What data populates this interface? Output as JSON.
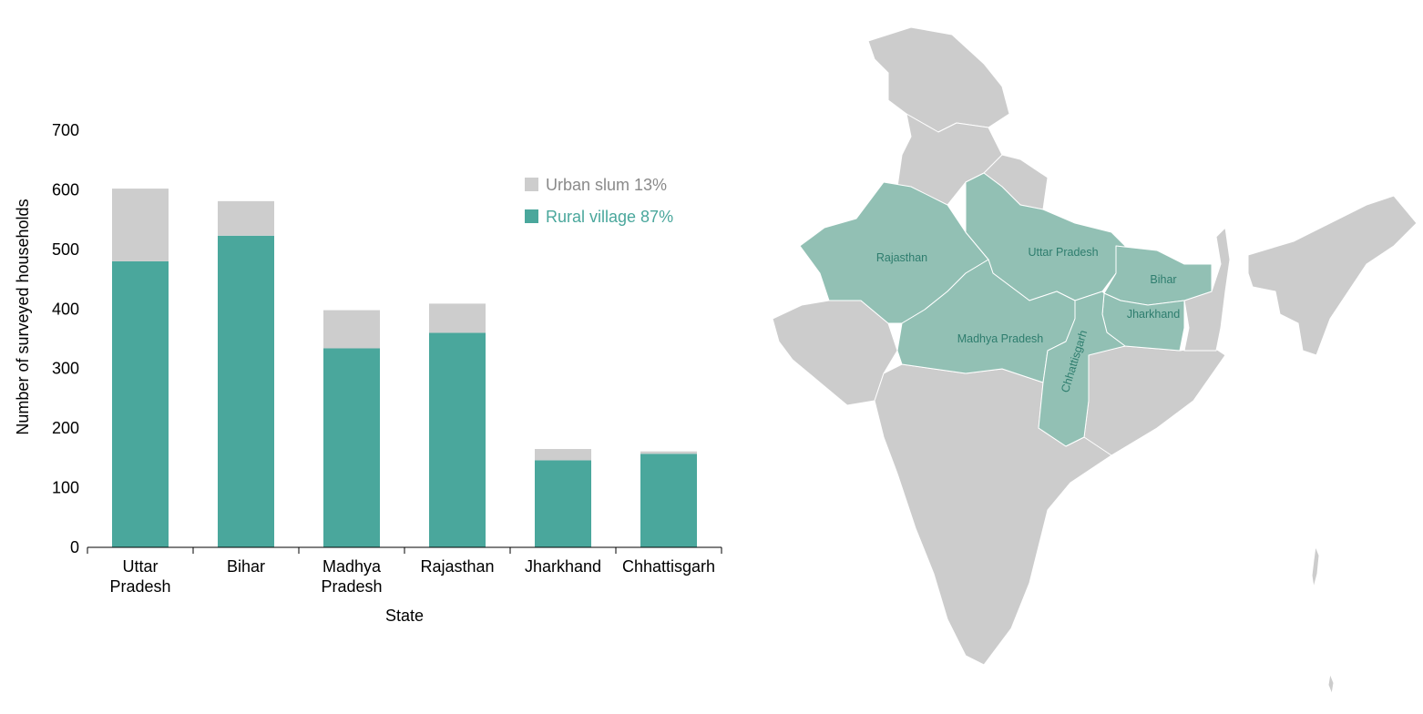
{
  "chart_data": {
    "type": "bar",
    "stacked": true,
    "categories": [
      [
        "Uttar",
        "Pradesh"
      ],
      [
        "Bihar"
      ],
      [
        "Madhya",
        "Pradesh"
      ],
      [
        "Rajasthan"
      ],
      [
        "Jharkhand"
      ],
      [
        "Chhattisgarh"
      ]
    ],
    "series": [
      {
        "name": "Rural village 87%",
        "color": "#4aa79c",
        "values": [
          480,
          523,
          334,
          360,
          146,
          157
        ]
      },
      {
        "name": "Urban slum 13%",
        "color": "#cdcdcd",
        "values": [
          122,
          58,
          64,
          49,
          19,
          4
        ]
      }
    ],
    "xlabel": "State",
    "ylabel": "Number of surveyed households",
    "ylim": [
      0,
      700
    ],
    "yticks": [
      0,
      100,
      200,
      300,
      400,
      500,
      600,
      700
    ],
    "legend": "top-right",
    "grid": false
  },
  "map": {
    "highlight_color": "#92c0b4",
    "base_color": "#cccccc",
    "highlighted_states": [
      "Rajasthan",
      "Uttar Pradesh",
      "Bihar",
      "Jharkhand",
      "Madhya Pradesh",
      "Chhattisgarh"
    ]
  }
}
